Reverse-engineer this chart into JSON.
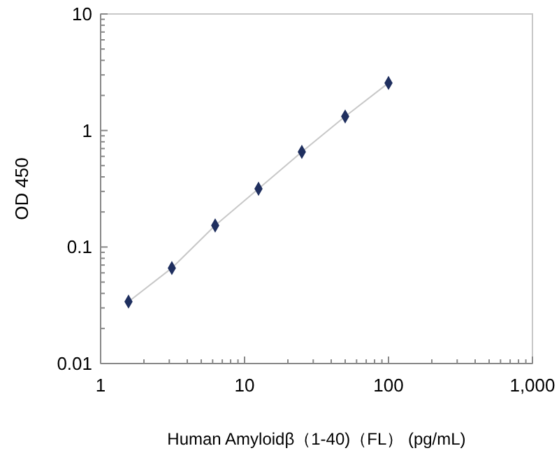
{
  "chart_data": {
    "type": "scatter",
    "xlabel": "Human Amyloidβ（1-40)（FL） (pg/mL)",
    "ylabel": "OD 450",
    "log": "xy",
    "xlim": [
      1,
      1000
    ],
    "ylim": [
      0.01,
      10
    ],
    "xticks": [
      {
        "value": 1,
        "label": "1"
      },
      {
        "value": 2,
        "label": null
      },
      {
        "value": 3,
        "label": null
      },
      {
        "value": 4,
        "label": null
      },
      {
        "value": 5,
        "label": null
      },
      {
        "value": 6,
        "label": null
      },
      {
        "value": 7,
        "label": null
      },
      {
        "value": 8,
        "label": null
      },
      {
        "value": 9,
        "label": null
      },
      10,
      {
        "value": 20,
        "label": null
      },
      {
        "value": 30,
        "label": null
      },
      {
        "value": 40,
        "label": null
      },
      {
        "value": 50,
        "label": null
      },
      {
        "value": 60,
        "label": null
      },
      {
        "value": 70,
        "label": null
      },
      {
        "value": 80,
        "label": null
      },
      {
        "value": 90,
        "label": null
      },
      100,
      {
        "value": 200,
        "label": null
      },
      {
        "value": 300,
        "label": null
      },
      {
        "value": 400,
        "label": null
      },
      {
        "value": 500,
        "label": null
      },
      {
        "value": 600,
        "label": null
      },
      {
        "value": 700,
        "label": null
      },
      {
        "value": 800,
        "label": null
      },
      {
        "value": 900,
        "label": null
      },
      {
        "value": 1000,
        "label": "1,000"
      }
    ],
    "yticks": [
      0.01,
      {
        "value": 0.02,
        "label": null
      },
      {
        "value": 0.03,
        "label": null
      },
      {
        "value": 0.04,
        "label": null
      },
      {
        "value": 0.05,
        "label": null
      },
      {
        "value": 0.06,
        "label": null
      },
      {
        "value": 0.07,
        "label": null
      },
      {
        "value": 0.08,
        "label": null
      },
      {
        "value": 0.09,
        "label": null
      },
      0.1,
      {
        "value": 0.2,
        "label": null
      },
      {
        "value": 0.3,
        "label": null
      },
      {
        "value": 0.4,
        "label": null
      },
      {
        "value": 0.5,
        "label": null
      },
      {
        "value": 0.6,
        "label": null
      },
      {
        "value": 0.7,
        "label": null
      },
      {
        "value": 0.8,
        "label": null
      },
      {
        "value": 0.9,
        "label": null
      },
      1,
      {
        "value": 2,
        "label": null
      },
      {
        "value": 3,
        "label": null
      },
      {
        "value": 4,
        "label": null
      },
      {
        "value": 5,
        "label": null
      },
      {
        "value": 6,
        "label": null
      },
      {
        "value": 7,
        "label": null
      },
      {
        "value": 8,
        "label": null
      },
      {
        "value": 9,
        "label": null
      },
      10
    ],
    "x": [
      1.5625,
      3.125,
      6.25,
      12.5,
      25,
      50,
      100
    ],
    "series": [
      {
        "type": "line",
        "color": "#c8c8c8",
        "marker": "none",
        "values": [
          0.034,
          0.066,
          0.153,
          0.316,
          0.655,
          1.32,
          2.56
        ]
      },
      {
        "type": "scatter",
        "color": "#1f2f5f",
        "marker": "diamond",
        "values": [
          0.034,
          0.066,
          0.153,
          0.316,
          0.655,
          1.32,
          2.56
        ]
      }
    ]
  }
}
